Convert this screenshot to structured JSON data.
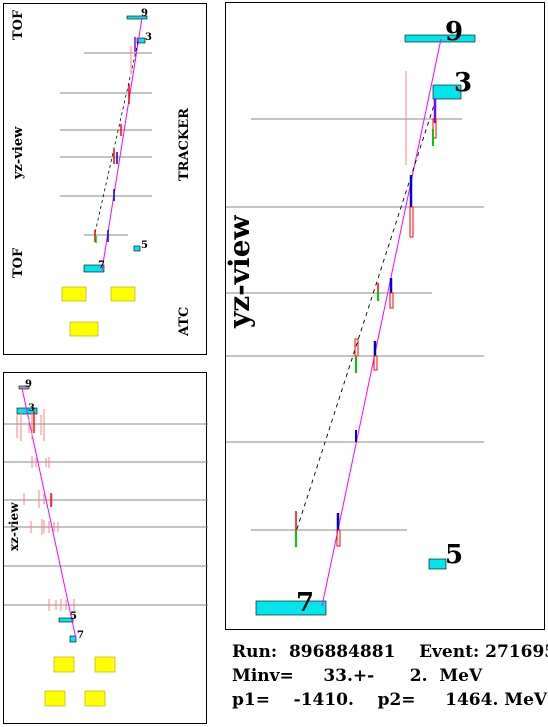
{
  "panels": {
    "yz_small": {
      "labels": {
        "tof_top": "TOF",
        "view": "yz-view",
        "tracker": "TRACKER",
        "tof_bottom": "TOF",
        "atc": "ATC"
      },
      "hit_numbers": {
        "h9": "9",
        "h3": "3",
        "h5": "5",
        "h7": "7"
      }
    },
    "xz_small": {
      "labels": {
        "view": "xz-view"
      },
      "hit_numbers": {
        "h9": "9",
        "h3": "3",
        "h5": "5",
        "h7": "7"
      }
    },
    "yz_large": {
      "labels": {
        "view": "yz-view"
      },
      "hit_numbers": {
        "h9": "9",
        "h3": "3",
        "h5": "5",
        "h7": "7"
      }
    }
  },
  "event_info": {
    "run_line": "Run:  896884881    Event: 271695",
    "minv_line": "Minv=     33.+-      2.  MeV",
    "p_line": "p1=    -1410.    p2=     1464. MeV"
  },
  "colors": {
    "track": "#ff00ff",
    "tof_counter": "#00e5ee",
    "atc_counter": "#ffff00",
    "hit_red": "#ff0000",
    "hit_green": "#00cc00",
    "hit_blue": "#0000cc",
    "plane": "#888888"
  }
}
